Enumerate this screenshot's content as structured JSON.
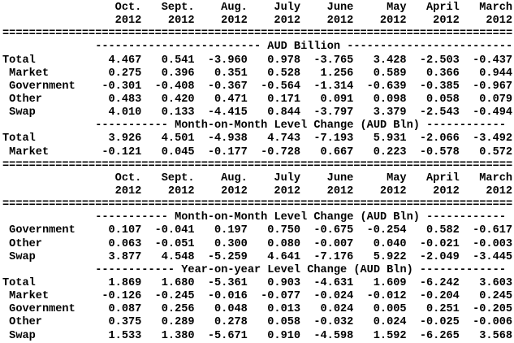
{
  "page": {
    "background_color": "#ffffff",
    "text_color": "#000000"
  },
  "columns": {
    "months": [
      "Oct.",
      "Sept.",
      "Aug.",
      "July",
      "June",
      "May",
      "April",
      "March"
    ],
    "years": [
      "2012",
      "2012",
      "2012",
      "2012",
      "2012",
      "2012",
      "2012",
      "2012"
    ]
  },
  "rules": {
    "double": "============================================================================="
  },
  "tables": [
    {
      "sections": [
        {
          "header": "------------------------- AUD Billion -------------------------",
          "title": "AUD Billion",
          "rows": [
            {
              "label": "Total",
              "indent": 0,
              "values": [
                "4.467",
                "0.541",
                "-3.960",
                "0.978",
                "-3.765",
                "3.428",
                "-2.503",
                "-0.437"
              ]
            },
            {
              "label": "Market",
              "indent": 1,
              "values": [
                "0.275",
                "0.396",
                "0.351",
                "0.528",
                "1.256",
                "0.589",
                "0.366",
                "0.944"
              ]
            },
            {
              "label": "Government",
              "indent": 1,
              "values": [
                "-0.301",
                "-0.408",
                "-0.367",
                "-0.564",
                "-1.314",
                "-0.639",
                "-0.385",
                "-0.967"
              ]
            },
            {
              "label": "Other",
              "indent": 1,
              "values": [
                "0.483",
                "0.420",
                "0.471",
                "0.171",
                "0.091",
                "0.098",
                "0.058",
                "0.079"
              ]
            },
            {
              "label": "Swap",
              "indent": 1,
              "values": [
                "4.010",
                "0.133",
                "-4.415",
                "0.844",
                "-3.797",
                "3.379",
                "-2.543",
                "-0.494"
              ]
            }
          ]
        },
        {
          "header": "----------- Month-on-Month Level Change (AUD Bln) ------------",
          "title": "Month-on-Month Level Change (AUD Bln)",
          "rows": [
            {
              "label": "Total",
              "indent": 0,
              "values": [
                "3.926",
                "4.501",
                "-4.938",
                "4.743",
                "-7.193",
                "5.931",
                "-2.066",
                "-3.492"
              ]
            },
            {
              "label": "Market",
              "indent": 1,
              "values": [
                "-0.121",
                "0.045",
                "-0.177",
                "-0.728",
                "0.667",
                "0.223",
                "-0.578",
                "0.572"
              ]
            }
          ]
        }
      ]
    },
    {
      "sections": [
        {
          "header": "----------- Month-on-Month Level Change (AUD Bln) ------------",
          "title": "Month-on-Month Level Change (AUD Bln)",
          "rows": [
            {
              "label": "Government",
              "indent": 1,
              "values": [
                "0.107",
                "-0.041",
                "0.197",
                "0.750",
                "-0.675",
                "-0.254",
                "0.582",
                "-0.617"
              ]
            },
            {
              "label": "Other",
              "indent": 1,
              "values": [
                "0.063",
                "-0.051",
                "0.300",
                "0.080",
                "-0.007",
                "0.040",
                "-0.021",
                "-0.003"
              ]
            },
            {
              "label": "Swap",
              "indent": 1,
              "values": [
                "3.877",
                "4.548",
                "-5.259",
                "4.641",
                "-7.176",
                "5.922",
                "-2.049",
                "-3.445"
              ]
            }
          ]
        },
        {
          "header": "------------ Year-on-year Level Change (AUD Bln) -------------",
          "title": "Year-on-year Level Change (AUD Bln)",
          "rows": [
            {
              "label": "Total",
              "indent": 0,
              "values": [
                "1.869",
                "1.680",
                "-5.361",
                "0.903",
                "-4.631",
                "1.609",
                "-6.242",
                "3.603"
              ]
            },
            {
              "label": "Market",
              "indent": 1,
              "values": [
                "-0.126",
                "-0.245",
                "-0.016",
                "-0.077",
                "-0.024",
                "-0.012",
                "-0.204",
                "0.245"
              ]
            },
            {
              "label": "Government",
              "indent": 1,
              "values": [
                "0.087",
                "0.256",
                "0.048",
                "0.013",
                "0.024",
                "0.005",
                "0.251",
                "-0.205"
              ]
            },
            {
              "label": "Other",
              "indent": 1,
              "values": [
                "0.375",
                "0.289",
                "0.278",
                "0.058",
                "-0.032",
                "0.024",
                "-0.025",
                "-0.006"
              ]
            },
            {
              "label": "Swap",
              "indent": 1,
              "values": [
                "1.533",
                "1.380",
                "-5.671",
                "0.910",
                "-4.598",
                "1.592",
                "-6.265",
                "3.568"
              ]
            }
          ]
        }
      ]
    }
  ]
}
